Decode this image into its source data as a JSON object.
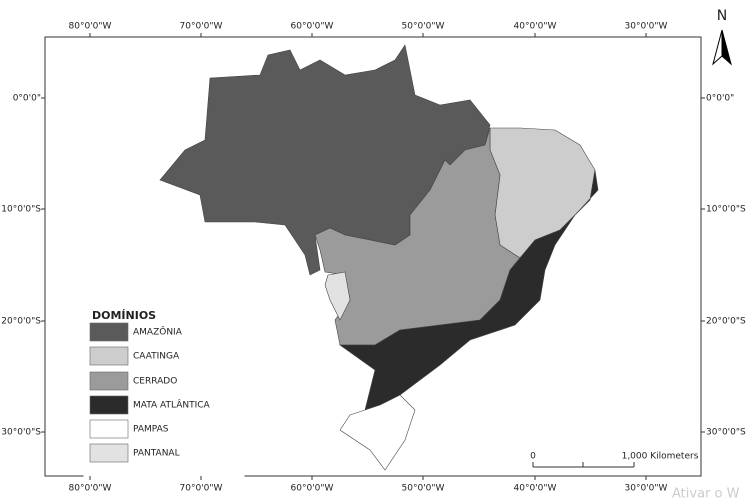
{
  "map": {
    "north": "N",
    "longitude_labels": [
      "80°0'0\"W",
      "70°0'0\"W",
      "60°0'0\"W",
      "50°0'0\"W",
      "40°0'0\"W",
      "30°0'0\"W"
    ],
    "latitude_labels": [
      "0°0'0\"",
      "10°0'0\"S",
      "20°0'0\"S",
      "30°0'0\"S"
    ],
    "legend": {
      "title": "DOMÍNIOS",
      "items": [
        {
          "name": "AMAZÔNIA",
          "color": "#5a5a5a"
        },
        {
          "name": "CAATINGA",
          "color": "#cdcdcd"
        },
        {
          "name": "CERRADO",
          "color": "#9b9b9b"
        },
        {
          "name": "MATA ATLÂNTICA",
          "color": "#2b2b2b"
        },
        {
          "name": "PAMPAS",
          "color": "#ffffff"
        },
        {
          "name": "PANTANAL",
          "color": "#e2e2e2"
        }
      ]
    },
    "scale": {
      "start": "0",
      "end": "1,000 Kilometers"
    },
    "watermark": "Ativar o W"
  }
}
